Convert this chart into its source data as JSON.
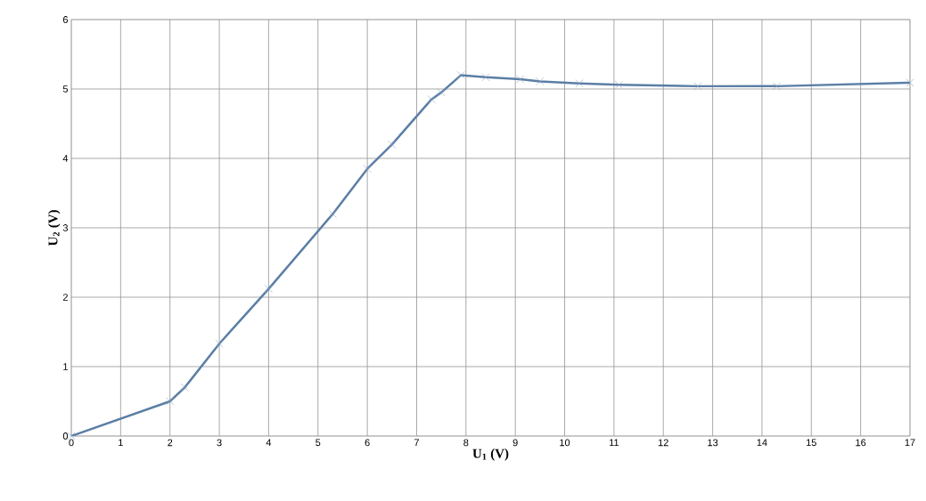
{
  "chart_data": {
    "type": "line",
    "xlabel": "U$_{1}$ (V)",
    "ylabel": "U$_{2}$ (V)",
    "x": [
      0,
      2,
      2.3,
      3,
      4,
      5.3,
      6,
      6.5,
      7.3,
      7.5,
      7.9,
      8.4,
      9.1,
      9.5,
      10.3,
      11.1,
      12.7,
      14.3,
      17
    ],
    "series": [
      {
        "color": "#5b7ea5",
        "values": [
          0,
          0.5,
          0.7,
          1.33,
          2.12,
          3.2,
          3.85,
          4.2,
          4.85,
          4.95,
          5.2,
          5.17,
          5.14,
          5.11,
          5.08,
          5.06,
          5.04,
          5.04,
          5.09
        ]
      }
    ],
    "xlim": [
      0,
      17
    ],
    "xticks": [
      0,
      1,
      2,
      3,
      4,
      5,
      6,
      7,
      8,
      9,
      10,
      11,
      12,
      13,
      14,
      15,
      16,
      17
    ],
    "ylim": [
      0,
      6
    ],
    "yticks": [
      0,
      1,
      2,
      3,
      4,
      5,
      6
    ],
    "grid": true,
    "marker": "cross",
    "line_style": "solid"
  }
}
